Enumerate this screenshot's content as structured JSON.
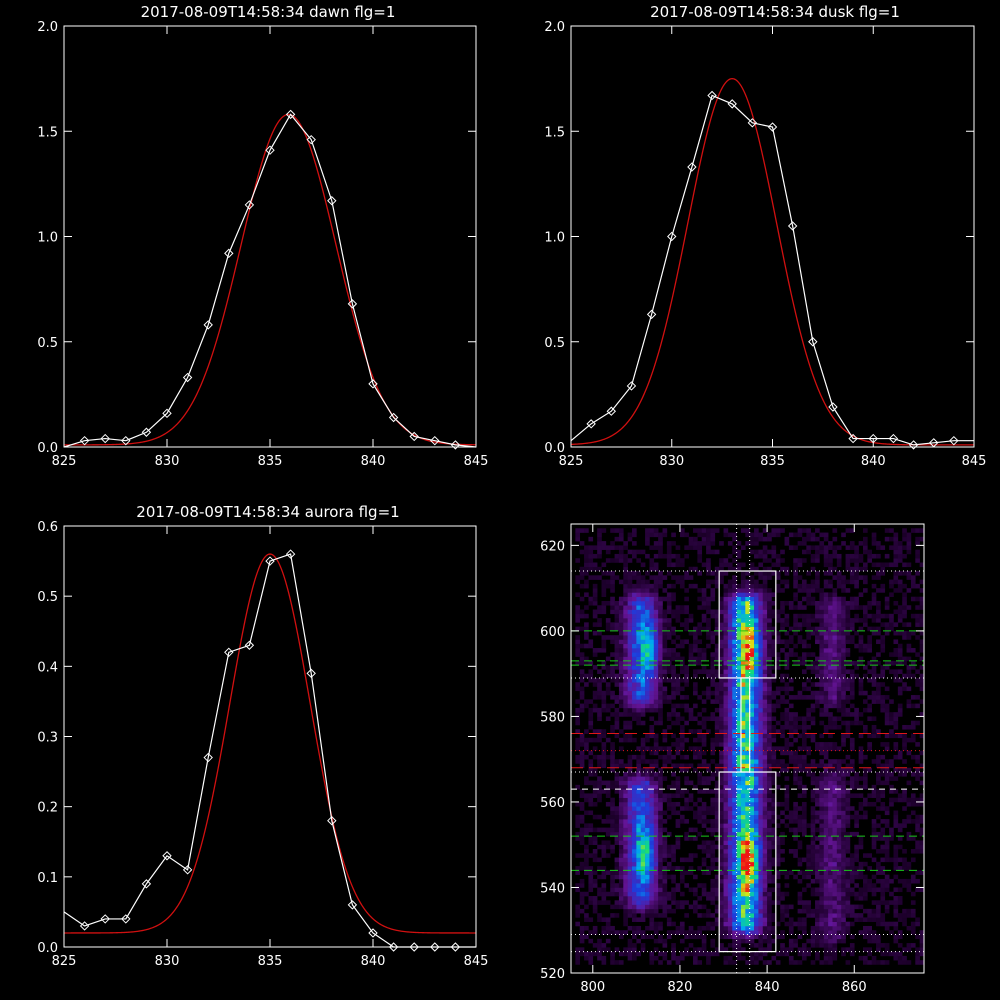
{
  "colors": {
    "background": "#000000",
    "axis": "#ffffff",
    "measured": "#ffffff",
    "fit": "#d01010",
    "green_line": "#18c818",
    "red_line": "#e01818",
    "box": "#ffffff"
  },
  "chart_data": [
    {
      "type": "line",
      "title": "2017-08-09T14:58:34 dawn flg=1",
      "xlim": [
        825,
        845
      ],
      "ylim": [
        0.0,
        2.0
      ],
      "xticks": [
        "825",
        "830",
        "835",
        "840",
        "845"
      ],
      "yticks": [
        "0.0",
        "0.5",
        "1.0",
        "1.5",
        "2.0"
      ],
      "grid": false,
      "series": [
        {
          "style": "white line with diamond markers",
          "x": [
            825,
            826,
            827,
            828,
            829,
            830,
            831,
            832,
            833,
            834,
            835,
            836,
            837,
            838,
            839,
            840,
            841,
            842,
            843,
            844,
            845
          ],
          "y": [
            0.0,
            0.03,
            0.04,
            0.03,
            0.07,
            0.16,
            0.33,
            0.58,
            0.92,
            1.15,
            1.41,
            1.58,
            1.46,
            1.17,
            0.68,
            0.3,
            0.14,
            0.05,
            0.03,
            0.01,
            0.0
          ]
        },
        {
          "style": "red gaussian fit",
          "gaussian": {
            "amplitude": 1.57,
            "center": 835.9,
            "sigma": 2.3,
            "baseline": 0.01
          }
        }
      ]
    },
    {
      "type": "line",
      "title": "2017-08-09T14:58:34 dusk flg=1",
      "xlim": [
        825,
        845
      ],
      "ylim": [
        0.0,
        2.0
      ],
      "xticks": [
        "825",
        "830",
        "835",
        "840",
        "845"
      ],
      "yticks": [
        "0.0",
        "0.5",
        "1.0",
        "1.5",
        "2.0"
      ],
      "grid": false,
      "series": [
        {
          "style": "white line with diamond markers",
          "x": [
            825,
            826,
            827,
            828,
            829,
            830,
            831,
            832,
            833,
            834,
            835,
            836,
            837,
            838,
            839,
            840,
            841,
            842,
            843,
            844,
            845
          ],
          "y": [
            0.03,
            0.11,
            0.17,
            0.29,
            0.63,
            1.0,
            1.33,
            1.67,
            1.63,
            1.54,
            1.52,
            1.05,
            0.5,
            0.19,
            0.04,
            0.04,
            0.04,
            0.01,
            0.02,
            0.03,
            0.03
          ]
        },
        {
          "style": "red gaussian fit",
          "gaussian": {
            "amplitude": 1.74,
            "center": 833.0,
            "sigma": 2.2,
            "baseline": 0.01
          }
        }
      ]
    },
    {
      "type": "line",
      "title": "2017-08-09T14:58:34 aurora flg=1",
      "xlim": [
        825,
        845
      ],
      "ylim": [
        0.0,
        0.6
      ],
      "xticks": [
        "825",
        "830",
        "835",
        "840",
        "845"
      ],
      "yticks": [
        "0.0",
        "0.1",
        "0.2",
        "0.3",
        "0.4",
        "0.5",
        "0.6"
      ],
      "grid": false,
      "series": [
        {
          "style": "white line with diamond markers",
          "x": [
            825,
            826,
            827,
            828,
            829,
            830,
            831,
            832,
            833,
            834,
            835,
            836,
            837,
            838,
            839,
            840,
            841,
            842,
            843,
            844,
            845
          ],
          "y": [
            0.05,
            0.03,
            0.04,
            0.04,
            0.09,
            0.13,
            0.11,
            0.27,
            0.42,
            0.43,
            0.55,
            0.56,
            0.39,
            0.18,
            0.06,
            0.02,
            0.0,
            0.0,
            0.0,
            0.0,
            0.0
          ]
        },
        {
          "style": "red gaussian fit",
          "gaussian": {
            "amplitude": 0.54,
            "center": 835.0,
            "sigma": 1.95,
            "baseline": 0.02
          }
        }
      ]
    },
    {
      "type": "heatmap",
      "title": "",
      "xlim": [
        795,
        876
      ],
      "ylim": [
        520,
        625
      ],
      "xticks": [
        "800",
        "820",
        "840",
        "860"
      ],
      "yticks": [
        "520",
        "540",
        "560",
        "580",
        "600",
        "620"
      ],
      "emission_columns": [
        {
          "x_center": 811,
          "x_width": 8,
          "y_ranges": [
            [
              538,
              563
            ],
            [
              585,
              606
            ]
          ],
          "peak_intensity": 0.55
        },
        {
          "x_center": 835,
          "x_width": 8,
          "y_ranges": [
            [
              532,
              567
            ],
            [
              566,
              591
            ],
            [
              589,
              606
            ]
          ],
          "peak_intensity": 1.0
        },
        {
          "x_center": 855,
          "x_width": 7,
          "y_ranges": [
            [
              530,
              565
            ],
            [
              585,
              605
            ]
          ],
          "peak_intensity": 0.18
        }
      ],
      "hot_spots": [
        [
          836,
          546
        ],
        [
          836,
          595
        ],
        [
          812,
          548
        ],
        [
          813,
          596
        ]
      ],
      "boxes": [
        {
          "x": [
            829,
            842
          ],
          "y": [
            525,
            567
          ]
        },
        {
          "x": [
            829,
            842
          ],
          "y": [
            589,
            614
          ]
        },
        {
          "x": [
            834,
            836
          ],
          "y": [
            567,
            589
          ]
        }
      ],
      "dotted_vertical_lines_x": [
        833,
        836
      ],
      "dotted_horizontal_lines_y": [
        525,
        529,
        567,
        589,
        614
      ],
      "green_dashed_lines_y": [
        544,
        552,
        592,
        593,
        600
      ],
      "red_dashed_lines_y": [
        568,
        576
      ],
      "white_dashed_lines_y": [
        563
      ],
      "red_dotted_lines_y": [
        572
      ]
    }
  ]
}
